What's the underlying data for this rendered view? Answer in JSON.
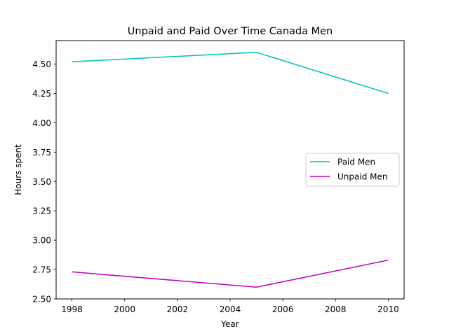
{
  "chart_data": {
    "type": "line",
    "title": "Unpaid and Paid Over Time Canada Men",
    "xlabel": "Year",
    "ylabel": "Hours spent",
    "xlim": [
      1997.4,
      2010.6
    ],
    "ylim": [
      2.5,
      4.7
    ],
    "xticks": [
      1998,
      2000,
      2002,
      2004,
      2006,
      2008,
      2010
    ],
    "yticks": [
      "2.50",
      "2.75",
      "3.00",
      "3.25",
      "3.50",
      "3.75",
      "4.00",
      "4.25",
      "4.50"
    ],
    "grid": false,
    "legend_position": "center-right",
    "series": [
      {
        "name": "Paid Men",
        "color": "#00bfbf",
        "x": [
          1998,
          2005,
          2010
        ],
        "y": [
          4.52,
          4.6,
          4.25
        ]
      },
      {
        "name": "Unpaid Men",
        "color": "#bf00bf",
        "x": [
          1998,
          2005,
          2010
        ],
        "y": [
          2.73,
          2.6,
          2.83
        ]
      }
    ]
  }
}
